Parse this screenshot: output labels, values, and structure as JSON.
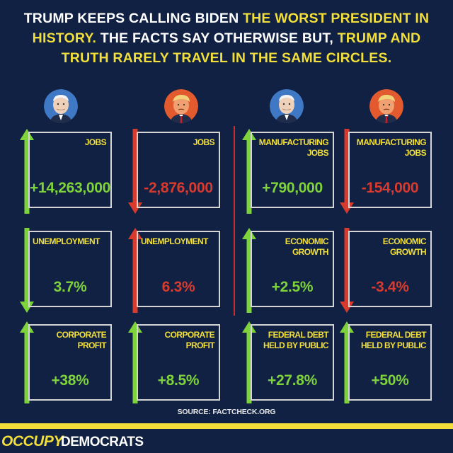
{
  "headline": {
    "part1": "TRUMP KEEPS CALLING BIDEN",
    "part2": "THE WORST PRESIDENT IN HISTORY.",
    "part3": "THE FACTS SAY OTHERWISE BUT,",
    "part4": "TRUMP AND TRUTH RARELY TRAVEL IN THE SAME CIRCLES."
  },
  "colors": {
    "background": "#102143",
    "accent": "#f2df3a",
    "positive": "#7fd33a",
    "negative": "#d93a2e",
    "biden_circle": "#3f78c4",
    "trump_circle": "#e25a2d"
  },
  "portraits": {
    "col1": "biden",
    "col2": "trump",
    "col3": "biden",
    "col4": "trump"
  },
  "cards": [
    {
      "label": "JOBS",
      "value": "+14,263,000",
      "direction": "up",
      "tone": "positive"
    },
    {
      "label": "JOBS",
      "value": "-2,876,000",
      "direction": "down",
      "tone": "negative"
    },
    {
      "label": "MANUFACTURING\nJOBS",
      "value": "+790,000",
      "direction": "up",
      "tone": "positive"
    },
    {
      "label": "MANUFACTURING\nJOBS",
      "value": "-154,000",
      "direction": "down",
      "tone": "negative"
    },
    {
      "label": "UNEMPLOYMENT",
      "value": "3.7%",
      "direction": "down",
      "tone": "positive"
    },
    {
      "label": "UNEMPLOYMENT",
      "value": "6.3%",
      "direction": "up",
      "tone": "negative"
    },
    {
      "label": "ECONOMIC\nGROWTH",
      "value": "+2.5%",
      "direction": "up",
      "tone": "positive"
    },
    {
      "label": "ECONOMIC\nGROWTH",
      "value": "-3.4%",
      "direction": "down",
      "tone": "negative"
    },
    {
      "label": "CORPORATE\nPROFIT",
      "value": "+38%",
      "direction": "up",
      "tone": "positive"
    },
    {
      "label": "CORPORATE\nPROFIT",
      "value": "+8.5%",
      "direction": "up",
      "tone": "positive"
    },
    {
      "label": "FEDERAL DEBT\nHELD BY PUBLIC",
      "value": "+27.8%",
      "direction": "up",
      "tone": "positive"
    },
    {
      "label": "FEDERAL DEBT\nHELD BY PUBLIC",
      "value": "+50%",
      "direction": "up",
      "tone": "positive"
    }
  ],
  "source": "SOURCE: FACTCHECK.ORG",
  "brand": {
    "part1": "OCCUPY",
    "part2": "DEMOCRATS"
  }
}
